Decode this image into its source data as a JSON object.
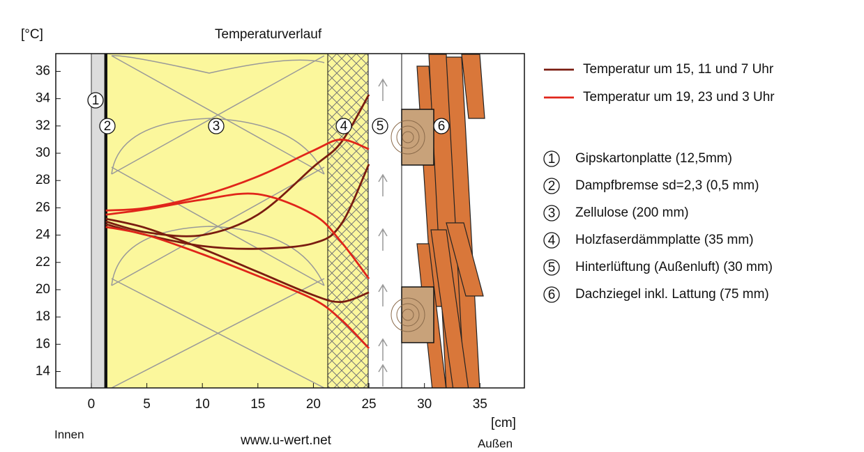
{
  "chart_data": {
    "type": "line",
    "title": "Temperaturverlauf",
    "y_unit": "[°C]",
    "x_unit": "[cm]",
    "inside_label": "Innen",
    "outside_label": "Außen",
    "source": "www.u-wert.net",
    "xlim": [
      -3.2,
      39
    ],
    "ylim": [
      12.8,
      37.3
    ],
    "xticks": [
      0,
      5,
      10,
      15,
      20,
      25,
      30,
      35
    ],
    "yticks": [
      14,
      16,
      18,
      20,
      22,
      24,
      26,
      28,
      30,
      32,
      34,
      36
    ],
    "x": [
      1.3,
      5,
      10,
      15,
      20,
      22.5,
      25
    ],
    "series": [
      {
        "name": "Temperatur um 15, 11 und 7 Uhr",
        "color": "#7a1c10",
        "values": [
          [
            25.0,
            24.2,
            24.0,
            25.5,
            29.0,
            30.8,
            34.3
          ],
          [
            24.8,
            24.0,
            23.2,
            23.0,
            23.4,
            24.8,
            29.2
          ],
          [
            25.2,
            24.5,
            23.0,
            21.3,
            19.6,
            19.1,
            19.8
          ]
        ]
      },
      {
        "name": "Temperatur um 19, 23 und 3 Uhr",
        "color": "#e0251a",
        "values": [
          [
            25.8,
            26.0,
            26.9,
            28.3,
            30.2,
            31.0,
            30.3
          ],
          [
            25.5,
            25.9,
            26.6,
            27.0,
            25.5,
            23.5,
            20.8
          ],
          [
            24.6,
            24.0,
            22.6,
            21.0,
            19.3,
            17.8,
            15.7
          ]
        ]
      }
    ],
    "layers": [
      {
        "number": "1",
        "label": "Gipskartonplatte (12,5mm)"
      },
      {
        "number": "2",
        "label": "Dampfbremse sd=2,3 (0,5 mm)"
      },
      {
        "number": "3",
        "label": "Zellulose (200 mm)"
      },
      {
        "number": "4",
        "label": "Holzfaserdämmplatte (35 mm)"
      },
      {
        "number": "5",
        "label": "Hinterlüftung (Außenluft) (30 mm)"
      },
      {
        "number": "6",
        "label": "Dachziegel inkl. Lattung (75 mm)"
      }
    ]
  }
}
